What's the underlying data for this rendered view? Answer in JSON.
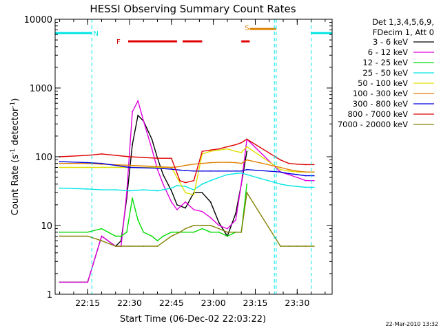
{
  "chart_data": {
    "type": "line",
    "title": "HESSI Observing Summary Count Rates",
    "xlabel": "Start Time (06-Dec-02 22:03:22)",
    "ylabel": "Count Rate (s⁻¹ detector⁻¹)",
    "ylabel_parts": {
      "main": "Count Rate (s",
      "sup1": "-1",
      "mid": " detector",
      "sup2": "-1",
      "end": ")"
    },
    "yscale": "log",
    "ylim": [
      1,
      10000
    ],
    "xlim": [
      "22:03:22",
      "23:42:30"
    ],
    "xticks": [
      "22:15",
      "22:30",
      "22:45",
      "23:00",
      "23:15",
      "23:30"
    ],
    "yticks": [
      "1",
      "10",
      "100",
      "1000",
      "10000"
    ],
    "legend_placement": "right",
    "legend_header": [
      "Det 1,3,4,5,6,9,",
      "FDecim 1, Att 0"
    ],
    "footer_date": "22-Mar-2010 13:32",
    "annotations": [
      {
        "label": "N",
        "color": "#00e5e5",
        "x": "22:16:30"
      },
      {
        "label": "F",
        "color": "#e00000",
        "x": "22:27:00"
      },
      {
        "label": "S",
        "color": "#e08000",
        "x": "23:13:00"
      }
    ],
    "night_intervals": [
      [
        "22:03:22",
        "22:16:30"
      ],
      [
        "23:35:00",
        "23:42:30"
      ]
    ],
    "flare_intervals": [
      [
        "22:29:30",
        "22:47:00"
      ],
      [
        "22:49:00",
        "22:56:00"
      ],
      [
        "23:10:00",
        "23:13:00"
      ]
    ],
    "saa_intervals": [
      [
        "23:13:00",
        "23:22:30"
      ]
    ],
    "vertical_markers": [
      {
        "time": "22:16:30",
        "color": "#00e5e5"
      },
      {
        "time": "23:21:50",
        "color": "#00e5e5"
      },
      {
        "time": "23:22:30",
        "color": "#00e5e5"
      },
      {
        "time": "23:35:00",
        "color": "#00e5e5"
      }
    ],
    "series": [
      {
        "name": "3 - 6 keV",
        "color": "#000000",
        "x": [
          "22:05",
          "22:15",
          "22:20",
          "22:25",
          "22:27",
          "22:29",
          "22:31",
          "22:33",
          "22:35",
          "22:38",
          "22:40",
          "22:42",
          "22:45",
          "22:47",
          "22:50",
          "22:53",
          "22:56",
          "22:59",
          "23:02",
          "23:05",
          "23:08",
          "23:10",
          "23:12"
        ],
        "values": [
          1.5,
          1.5,
          7,
          5,
          6,
          25,
          150,
          400,
          330,
          180,
          95,
          55,
          32,
          20,
          18,
          30,
          30,
          22,
          11,
          7,
          15,
          40,
          120
        ]
      },
      {
        "name": "6 - 12 keV",
        "color": "#e000e0",
        "x": [
          "22:05",
          "22:15",
          "22:20",
          "22:25",
          "22:27",
          "22:29",
          "22:31",
          "22:33",
          "22:35",
          "22:38",
          "22:40",
          "22:42",
          "22:45",
          "22:47",
          "22:50",
          "22:53",
          "22:56",
          "22:59",
          "23:02",
          "23:05",
          "23:08",
          "23:10",
          "23:12",
          "23:24",
          "23:27",
          "23:30",
          "23:33",
          "23:36"
        ],
        "values": [
          1.5,
          1.5,
          7,
          5,
          5,
          30,
          450,
          650,
          330,
          130,
          65,
          40,
          22,
          17,
          22,
          17,
          16,
          13,
          10,
          9,
          12,
          40,
          180,
          60,
          55,
          50,
          45,
          45
        ]
      },
      {
        "name": "12 - 25 keV",
        "color": "#00dd00",
        "x": [
          "22:05",
          "22:15",
          "22:20",
          "22:25",
          "22:27",
          "22:29",
          "22:31",
          "22:33",
          "22:35",
          "22:38",
          "22:40",
          "22:42",
          "22:45",
          "22:47",
          "22:50",
          "22:53",
          "22:56",
          "22:59",
          "23:02",
          "23:05",
          "23:08",
          "23:10",
          "23:12"
        ],
        "values": [
          8,
          8,
          9,
          7,
          7,
          8,
          25,
          12,
          8,
          7,
          6,
          7,
          8,
          8,
          8,
          8,
          9,
          8,
          8,
          7,
          8,
          8,
          40
        ]
      },
      {
        "name": "25 - 50 keV",
        "color": "#00e5e5",
        "x": [
          "22:05",
          "22:15",
          "22:20",
          "22:25",
          "22:30",
          "22:35",
          "22:40",
          "22:45",
          "22:47",
          "22:50",
          "22:53",
          "22:56",
          "22:59",
          "23:02",
          "23:05",
          "23:08",
          "23:10",
          "23:12",
          "23:24",
          "23:27",
          "23:30",
          "23:33",
          "23:36"
        ],
        "values": [
          35,
          34,
          33,
          33,
          32,
          33,
          32,
          35,
          38,
          37,
          33,
          40,
          45,
          50,
          55,
          57,
          58,
          55,
          40,
          38,
          37,
          36,
          36
        ]
      },
      {
        "name": "50 - 100 keV",
        "color": "#e0e000",
        "x": [
          "22:05",
          "22:15",
          "22:20",
          "22:30",
          "22:40",
          "22:45",
          "22:48",
          "22:50",
          "22:53",
          "22:56",
          "22:59",
          "23:02",
          "23:05",
          "23:08",
          "23:10",
          "23:12",
          "23:24",
          "23:27",
          "23:30",
          "23:33",
          "23:36"
        ],
        "values": [
          70,
          70,
          70,
          70,
          70,
          70,
          42,
          30,
          28,
          110,
          120,
          125,
          130,
          120,
          115,
          140,
          65,
          62,
          60,
          60,
          60
        ]
      },
      {
        "name": "100 - 300 keV",
        "color": "#e08000",
        "x": [
          "22:05",
          "22:15",
          "22:20",
          "22:30",
          "22:40",
          "22:45",
          "22:48",
          "22:50",
          "22:53",
          "22:56",
          "22:59",
          "23:02",
          "23:05",
          "23:08",
          "23:10",
          "23:12",
          "23:24",
          "23:27",
          "23:30",
          "23:33",
          "23:36"
        ],
        "values": [
          80,
          80,
          78,
          75,
          72,
          70,
          72,
          75,
          78,
          80,
          82,
          83,
          83,
          82,
          80,
          90,
          70,
          65,
          62,
          60,
          60
        ]
      },
      {
        "name": "300 - 800 keV",
        "color": "#0000e0",
        "x": [
          "22:05",
          "22:15",
          "22:20",
          "22:30",
          "22:40",
          "22:45",
          "22:48",
          "22:50",
          "22:53",
          "22:56",
          "22:59",
          "23:02",
          "23:05",
          "23:08",
          "23:10",
          "23:12",
          "23:24",
          "23:27",
          "23:30",
          "23:33",
          "23:36"
        ],
        "values": [
          85,
          82,
          80,
          70,
          68,
          66,
          64,
          63,
          62,
          62,
          62,
          62,
          62,
          62,
          62,
          65,
          60,
          57,
          55,
          53,
          53
        ]
      },
      {
        "name": "800 - 7000 keV",
        "color": "#e00000",
        "x": [
          "22:05",
          "22:15",
          "22:20",
          "22:30",
          "22:40",
          "22:45",
          "22:48",
          "22:50",
          "22:53",
          "22:56",
          "22:59",
          "23:02",
          "23:05",
          "23:08",
          "23:10",
          "23:12",
          "23:24",
          "23:27",
          "23:30",
          "23:33",
          "23:36"
        ],
        "values": [
          100,
          105,
          110,
          100,
          95,
          95,
          45,
          42,
          45,
          120,
          125,
          130,
          140,
          150,
          160,
          180,
          90,
          80,
          78,
          77,
          77
        ]
      },
      {
        "name": "7000 - 20000 keV",
        "color": "#808000",
        "x": [
          "22:05",
          "22:15",
          "22:20",
          "22:25",
          "22:30",
          "22:35",
          "22:40",
          "22:45",
          "22:48",
          "22:50",
          "22:53",
          "22:56",
          "22:59",
          "23:02",
          "23:05",
          "23:08",
          "23:10",
          "23:12",
          "23:24",
          "23:27",
          "23:30",
          "23:33",
          "23:36"
        ],
        "values": [
          7,
          7,
          6,
          5,
          5,
          5,
          5,
          7,
          8,
          9,
          10,
          10,
          10,
          9,
          8,
          8,
          8,
          30,
          5,
          5,
          5,
          5,
          5
        ]
      }
    ]
  }
}
